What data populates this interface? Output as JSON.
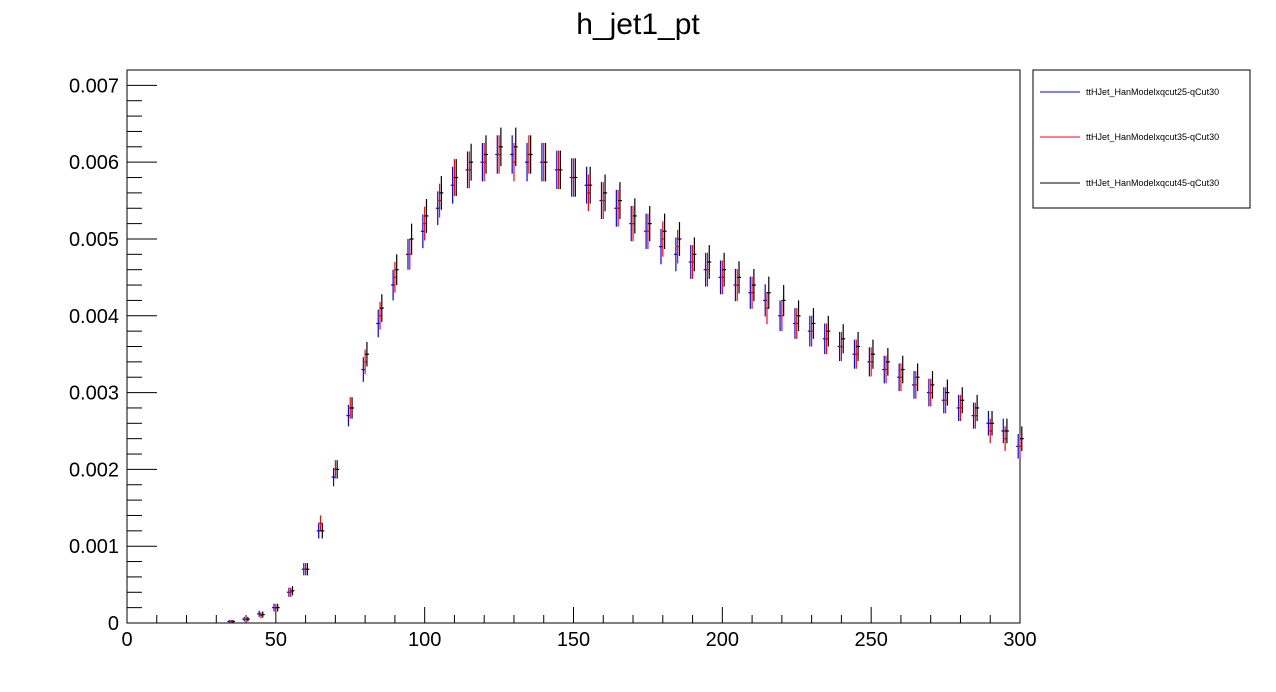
{
  "chart_data": {
    "type": "scatter",
    "title": "h_jet1_pt",
    "xlabel": "",
    "ylabel": "",
    "xlim": [
      0,
      300
    ],
    "ylim": [
      0,
      0.0072
    ],
    "x_ticks": [
      0,
      50,
      100,
      150,
      200,
      250,
      300
    ],
    "y_ticks": [
      0,
      0.001,
      0.002,
      0.003,
      0.004,
      0.005,
      0.006,
      0.007
    ],
    "y_tick_labels": [
      "0",
      "0.001",
      "0.002",
      "0.003",
      "0.004",
      "0.005",
      "0.006",
      "0.007"
    ],
    "x_tick_labels": [
      "0",
      "50",
      "100",
      "150",
      "200",
      "250",
      "300"
    ],
    "grid": false,
    "legend_position": "top-right-outside",
    "x": [
      35,
      40,
      45,
      50,
      55,
      60,
      65,
      70,
      75,
      80,
      85,
      90,
      95,
      100,
      105,
      110,
      115,
      120,
      125,
      130,
      135,
      140,
      145,
      150,
      155,
      160,
      165,
      170,
      175,
      180,
      185,
      190,
      195,
      200,
      205,
      210,
      215,
      220,
      225,
      230,
      235,
      240,
      245,
      250,
      255,
      260,
      265,
      270,
      275,
      280,
      285,
      290,
      295,
      300
    ],
    "series": [
      {
        "name": "ttHJet_HanModelxqcut25-qCut30",
        "color": "#0000ff",
        "values": [
          2e-05,
          5e-05,
          0.00012,
          0.0002,
          0.0004,
          0.0007,
          0.0012,
          0.0019,
          0.0027,
          0.0033,
          0.0039,
          0.0044,
          0.0048,
          0.0051,
          0.0054,
          0.0057,
          0.0059,
          0.006,
          0.0061,
          0.0061,
          0.006,
          0.006,
          0.0059,
          0.0058,
          0.0057,
          0.0055,
          0.0054,
          0.0052,
          0.0051,
          0.0049,
          0.0048,
          0.0047,
          0.0046,
          0.0045,
          0.0044,
          0.0043,
          0.0042,
          0.004,
          0.0039,
          0.0038,
          0.0037,
          0.0036,
          0.0035,
          0.0034,
          0.0033,
          0.0032,
          0.0031,
          0.003,
          0.0029,
          0.0028,
          0.0027,
          0.0026,
          0.0025,
          0.0023
        ],
        "errors": [
          2e-05,
          3e-05,
          4e-05,
          5e-05,
          6e-05,
          8e-05,
          0.0001,
          0.00012,
          0.00014,
          0.00016,
          0.00018,
          0.0002,
          0.0002,
          0.00022,
          0.00022,
          0.00024,
          0.00024,
          0.00025,
          0.00025,
          0.00025,
          0.00025,
          0.00025,
          0.00025,
          0.00025,
          0.00024,
          0.00024,
          0.00024,
          0.00023,
          0.00023,
          0.00023,
          0.00022,
          0.00022,
          0.00022,
          0.00022,
          0.00021,
          0.00021,
          0.00021,
          0.0002,
          0.0002,
          0.0002,
          0.0002,
          0.00019,
          0.00019,
          0.00019,
          0.00018,
          0.00018,
          0.00018,
          0.00018,
          0.00017,
          0.00017,
          0.00017,
          0.00016,
          0.00016,
          0.00016
        ]
      },
      {
        "name": "ttHJet_HanModelxqcut35-qCut30",
        "color": "#ff0000",
        "values": [
          2e-05,
          5e-05,
          0.0001,
          0.0002,
          0.0004,
          0.0007,
          0.0013,
          0.002,
          0.0028,
          0.0034,
          0.004,
          0.0045,
          0.0048,
          0.0052,
          0.0055,
          0.0058,
          0.0059,
          0.006,
          0.0061,
          0.006,
          0.0061,
          0.006,
          0.0059,
          0.0058,
          0.0056,
          0.0055,
          0.0054,
          0.0052,
          0.0051,
          0.005,
          0.0049,
          0.0047,
          0.0046,
          0.0045,
          0.0044,
          0.0043,
          0.0041,
          0.004,
          0.0039,
          0.0038,
          0.0037,
          0.0036,
          0.0035,
          0.0034,
          0.0033,
          0.0032,
          0.0031,
          0.003,
          0.0029,
          0.0028,
          0.0027,
          0.0025,
          0.0024,
          0.0023
        ],
        "errors": [
          2e-05,
          3e-05,
          4e-05,
          5e-05,
          6e-05,
          8e-05,
          0.0001,
          0.00012,
          0.00014,
          0.00016,
          0.00018,
          0.0002,
          0.0002,
          0.00022,
          0.00022,
          0.00024,
          0.00024,
          0.00025,
          0.00025,
          0.00025,
          0.00025,
          0.00025,
          0.00025,
          0.00025,
          0.00024,
          0.00024,
          0.00024,
          0.00023,
          0.00023,
          0.00023,
          0.00022,
          0.00022,
          0.00022,
          0.00022,
          0.00021,
          0.00021,
          0.00021,
          0.0002,
          0.0002,
          0.0002,
          0.0002,
          0.00019,
          0.00019,
          0.00019,
          0.00018,
          0.00018,
          0.00018,
          0.00018,
          0.00017,
          0.00017,
          0.00017,
          0.00016,
          0.00016,
          0.00016
        ]
      },
      {
        "name": "ttHJet_HanModelxqcut45-qCut30",
        "color": "#000000",
        "values": [
          2e-05,
          5e-05,
          0.00011,
          0.0002,
          0.00042,
          0.0007,
          0.0012,
          0.002,
          0.0028,
          0.0035,
          0.0041,
          0.0046,
          0.005,
          0.0053,
          0.0056,
          0.0058,
          0.006,
          0.0061,
          0.0062,
          0.0062,
          0.0061,
          0.006,
          0.0059,
          0.0058,
          0.0057,
          0.0056,
          0.0055,
          0.0053,
          0.0052,
          0.0051,
          0.005,
          0.0048,
          0.0047,
          0.0046,
          0.0045,
          0.0044,
          0.0043,
          0.0042,
          0.004,
          0.0039,
          0.0038,
          0.0037,
          0.0036,
          0.0035,
          0.0034,
          0.0033,
          0.0032,
          0.0031,
          0.003,
          0.0029,
          0.0028,
          0.0026,
          0.0025,
          0.0024
        ],
        "errors": [
          2e-05,
          3e-05,
          4e-05,
          5e-05,
          6e-05,
          8e-05,
          0.0001,
          0.00012,
          0.00014,
          0.00016,
          0.00018,
          0.0002,
          0.0002,
          0.00022,
          0.00022,
          0.00024,
          0.00024,
          0.00025,
          0.00025,
          0.00025,
          0.00025,
          0.00025,
          0.00025,
          0.00025,
          0.00024,
          0.00024,
          0.00024,
          0.00023,
          0.00023,
          0.00023,
          0.00022,
          0.00022,
          0.00022,
          0.00022,
          0.00021,
          0.00021,
          0.00021,
          0.0002,
          0.0002,
          0.0002,
          0.0002,
          0.00019,
          0.00019,
          0.00019,
          0.00018,
          0.00018,
          0.00018,
          0.00018,
          0.00017,
          0.00017,
          0.00017,
          0.00016,
          0.00016,
          0.00016
        ]
      }
    ]
  }
}
